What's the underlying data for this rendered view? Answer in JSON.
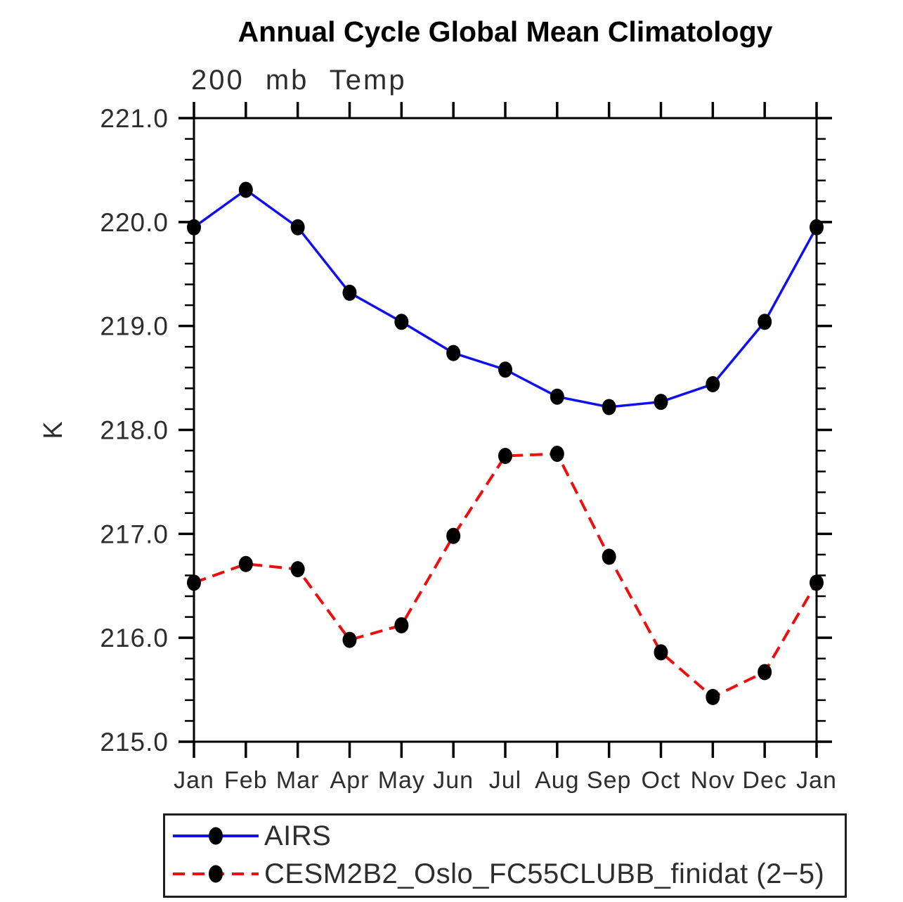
{
  "chart_data": {
    "type": "line",
    "title": "Annual Cycle Global Mean Climatology",
    "subtitle": "200 mb Temp",
    "xlabel": "",
    "ylabel": "K",
    "categories": [
      "Jan",
      "Feb",
      "Mar",
      "Apr",
      "May",
      "Jun",
      "Jul",
      "Aug",
      "Sep",
      "Oct",
      "Nov",
      "Dec",
      "Jan"
    ],
    "ylim": [
      215.0,
      221.0
    ],
    "ytick_major_interval": 1.0,
    "ytick_minor_interval": 0.2,
    "ytick_labels": [
      "221.0",
      "220.0",
      "219.0",
      "218.0",
      "217.0",
      "216.0",
      "215.0"
    ],
    "grid": false,
    "legend_position": "bottom-outside",
    "axis_color": "#000000",
    "marker_color": "#000000",
    "series": [
      {
        "name": "AIRS",
        "color": "#1010ee",
        "style": "solid",
        "marker": "filled-circle",
        "values": [
          219.95,
          220.31,
          219.95,
          219.32,
          219.04,
          218.74,
          218.58,
          218.32,
          218.22,
          218.27,
          218.44,
          219.04,
          219.95
        ]
      },
      {
        "name": "CESM2B2_Oslo_FC55CLUBB_finidat (2−5)",
        "color": "#ee0e0e",
        "style": "dashed",
        "marker": "filled-circle",
        "values": [
          216.53,
          216.71,
          216.66,
          215.98,
          216.12,
          216.98,
          217.75,
          217.77,
          216.78,
          215.86,
          215.43,
          215.67,
          216.53
        ]
      }
    ]
  }
}
